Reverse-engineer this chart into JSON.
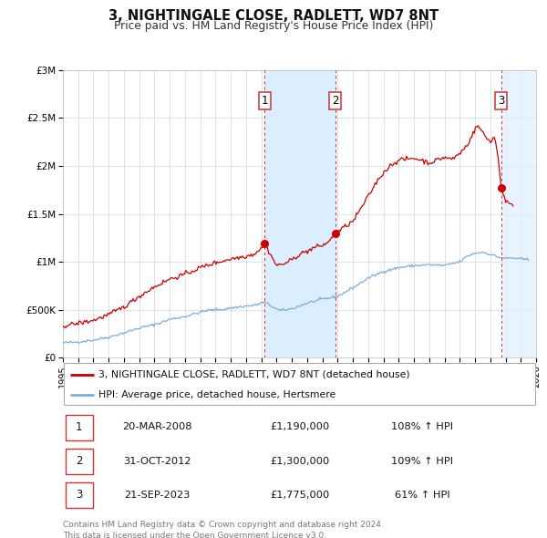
{
  "title": "3, NIGHTINGALE CLOSE, RADLETT, WD7 8NT",
  "subtitle": "Price paid vs. HM Land Registry's House Price Index (HPI)",
  "ylim": [
    0,
    3000000
  ],
  "xlim_start": 1995,
  "xlim_end": 2026,
  "yticks": [
    0,
    500000,
    1000000,
    1500000,
    2000000,
    2500000,
    3000000
  ],
  "ytick_labels": [
    "£0",
    "£500K",
    "£1M",
    "£1.5M",
    "£2M",
    "£2.5M",
    "£3M"
  ],
  "sale_color": "#cc0000",
  "hpi_color": "#7aaddd",
  "background_color": "#ffffff",
  "grid_color": "#cccccc",
  "legend_label_sale": "3, NIGHTINGALE CLOSE, RADLETT, WD7 8NT (detached house)",
  "legend_label_hpi": "HPI: Average price, detached house, Hertsmere",
  "transactions": [
    {
      "num": 1,
      "date": "20-MAR-2008",
      "price": 1190000,
      "pct": "108%",
      "x": 2008.22
    },
    {
      "num": 2,
      "date": "31-OCT-2012",
      "price": 1300000,
      "pct": "109%",
      "x": 2012.83
    },
    {
      "num": 3,
      "date": "21-SEP-2023",
      "price": 1775000,
      "pct": "61%",
      "x": 2023.72
    }
  ],
  "footer_line1": "Contains HM Land Registry data © Crown copyright and database right 2024.",
  "footer_line2": "This data is licensed under the Open Government Licence v3.0.",
  "span_color": "#dbeeff",
  "hatch_color": "#c8d8ee",
  "label_box_color": "#cc3333",
  "hpi_anchors_x": [
    1995.0,
    1996.0,
    1997.0,
    1998.0,
    1999.0,
    2000.0,
    2001.0,
    2002.0,
    2003.0,
    2004.0,
    2004.5,
    2005.5,
    2006.5,
    2007.5,
    2008.2,
    2009.2,
    2010.0,
    2011.0,
    2012.0,
    2013.0,
    2014.0,
    2015.0,
    2016.0,
    2017.0,
    2018.0,
    2019.0,
    2020.0,
    2021.0,
    2021.5,
    2022.0,
    2022.5,
    2023.0,
    2023.5,
    2024.0,
    2024.5,
    2025.5
  ],
  "hpi_anchors_y": [
    155000,
    165000,
    185000,
    215000,
    260000,
    310000,
    345000,
    400000,
    430000,
    475000,
    495000,
    505000,
    530000,
    545000,
    580000,
    490000,
    510000,
    570000,
    610000,
    640000,
    730000,
    830000,
    900000,
    940000,
    960000,
    970000,
    960000,
    1000000,
    1060000,
    1090000,
    1100000,
    1080000,
    1050000,
    1035000,
    1040000,
    1020000
  ],
  "sale_anchors_x": [
    1995.0,
    1996.0,
    1997.0,
    1998.0,
    1999.0,
    2000.0,
    2001.0,
    2002.0,
    2003.0,
    2004.0,
    2005.0,
    2006.0,
    2007.0,
    2007.5,
    2008.0,
    2008.22,
    2009.0,
    2009.5,
    2010.0,
    2010.5,
    2011.0,
    2011.5,
    2012.0,
    2012.5,
    2012.83,
    2013.0,
    2013.5,
    2014.0,
    2014.5,
    2015.0,
    2015.5,
    2016.0,
    2016.5,
    2017.0,
    2017.5,
    2018.0,
    2018.5,
    2019.0,
    2019.5,
    2020.0,
    2020.5,
    2021.0,
    2021.5,
    2022.0,
    2022.2,
    2022.5,
    2022.8,
    2023.0,
    2023.3,
    2023.5,
    2023.72,
    2024.0,
    2024.5
  ],
  "sale_anchors_y": [
    330000,
    360000,
    390000,
    450000,
    530000,
    640000,
    740000,
    820000,
    870000,
    940000,
    990000,
    1030000,
    1060000,
    1080000,
    1140000,
    1190000,
    960000,
    980000,
    1020000,
    1080000,
    1110000,
    1150000,
    1170000,
    1220000,
    1300000,
    1310000,
    1370000,
    1420000,
    1550000,
    1680000,
    1820000,
    1930000,
    2010000,
    2060000,
    2070000,
    2080000,
    2060000,
    2030000,
    2060000,
    2090000,
    2070000,
    2130000,
    2220000,
    2380000,
    2420000,
    2350000,
    2280000,
    2260000,
    2300000,
    2100000,
    1775000,
    1640000,
    1570000
  ]
}
